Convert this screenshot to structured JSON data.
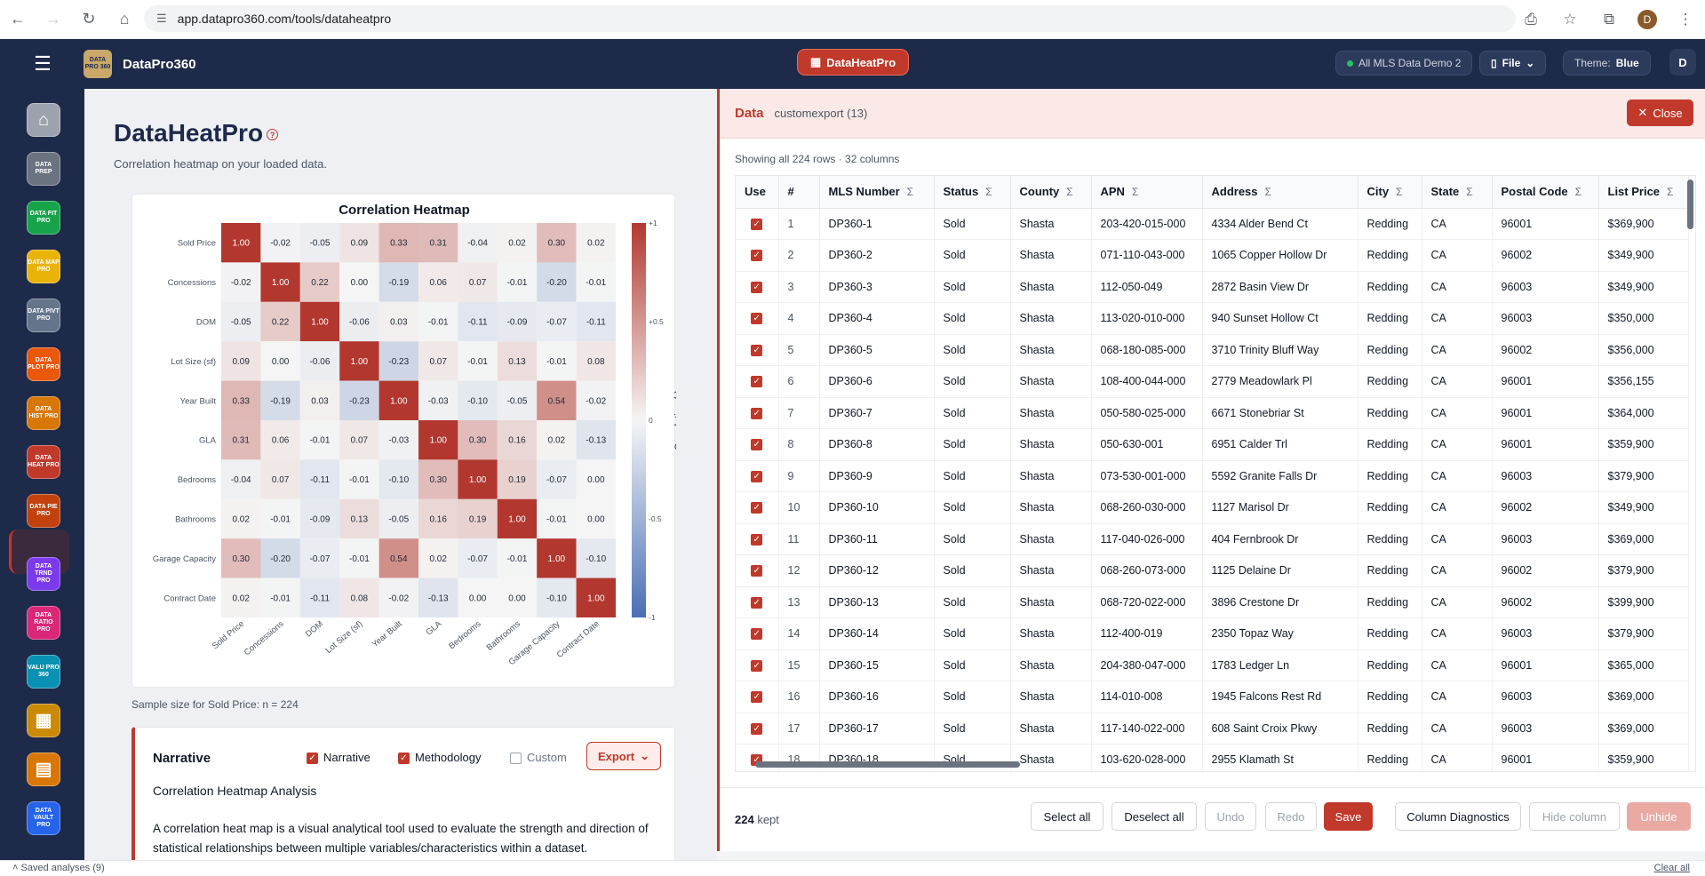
{
  "browser": {
    "url": "app.datapro360.com/tools/dataheatpro",
    "profile": "D"
  },
  "app": {
    "brand": "DataPro360",
    "logo_text": "DATA PRO 360",
    "center_tool": "DataHeatPro",
    "dataset": "All MLS Data Demo 2",
    "file_menu": "File",
    "theme_label": "Theme:",
    "theme_value": "Blue",
    "user": "D"
  },
  "sidebar": [
    {
      "label": "",
      "color": "#9ca3af",
      "icon": "home-icon"
    },
    {
      "label": "DATA PREP",
      "color": "#6b7280"
    },
    {
      "label": "DATA FIT PRO",
      "color": "#16a34a"
    },
    {
      "label": "DATA MAP PRO",
      "color": "#eab308"
    },
    {
      "label": "DATA PIVT PRO",
      "color": "#64748b"
    },
    {
      "label": "DATA PLOT PRO",
      "color": "#ea580c"
    },
    {
      "label": "DATA HIST PRO",
      "color": "#d97706"
    },
    {
      "label": "DATA HEAT PRO",
      "color": "#c0392b"
    },
    {
      "label": "DATA PIE PRO",
      "color": "#c2410c"
    },
    {
      "label": "DATA TRND PRO",
      "color": "#7c3aed"
    },
    {
      "label": "DATA RATIO PRO",
      "color": "#db2777"
    },
    {
      "label": "VALU PRO 360",
      "color": "#0891b2"
    },
    {
      "label": "",
      "color": "#ca8a04",
      "icon": "grid-icon"
    },
    {
      "label": "",
      "color": "#d97706",
      "icon": "report-icon"
    },
    {
      "label": "DATA VAULT PRO",
      "color": "#2563eb"
    }
  ],
  "page": {
    "title": "DataHeatPro",
    "subtitle": "Correlation heatmap on your loaded data.",
    "sample": "Sample size for Sold Price: n = 224"
  },
  "chart_data": {
    "type": "heatmap",
    "title": "Correlation Heatmap",
    "colorbar_label": "Correlation (r)",
    "colorbar_ticks": [
      "+1",
      "+0.5",
      "0",
      "-0.5",
      "-1"
    ],
    "range": [
      -1,
      1
    ],
    "colors": {
      "positive": "#b2382f",
      "negative": "#4a6fb5",
      "neutral": "#f5f5f5"
    },
    "labels": [
      "Sold Price",
      "Concessions",
      "DOM",
      "Lot Size (sf)",
      "Year Built",
      "GLA",
      "Bedrooms",
      "Bathrooms",
      "Garage Capacity",
      "Contract Date"
    ],
    "matrix": [
      [
        1.0,
        -0.02,
        -0.05,
        0.09,
        0.33,
        0.31,
        -0.04,
        0.02,
        0.3,
        0.02
      ],
      [
        -0.02,
        1.0,
        0.22,
        0.0,
        -0.19,
        0.06,
        0.07,
        -0.01,
        -0.2,
        -0.01
      ],
      [
        -0.05,
        0.22,
        1.0,
        -0.06,
        0.03,
        -0.01,
        -0.11,
        -0.09,
        -0.07,
        -0.11
      ],
      [
        0.09,
        0.0,
        -0.06,
        1.0,
        -0.23,
        0.07,
        -0.01,
        0.13,
        -0.01,
        0.08
      ],
      [
        0.33,
        -0.19,
        0.03,
        -0.23,
        1.0,
        -0.03,
        -0.1,
        -0.05,
        0.54,
        -0.02
      ],
      [
        0.31,
        0.06,
        -0.01,
        0.07,
        -0.03,
        1.0,
        0.3,
        0.16,
        0.02,
        -0.13
      ],
      [
        -0.04,
        0.07,
        -0.11,
        -0.01,
        -0.1,
        0.3,
        1.0,
        0.19,
        -0.07,
        0.0
      ],
      [
        0.02,
        -0.01,
        -0.09,
        0.13,
        -0.05,
        0.16,
        0.19,
        1.0,
        -0.01,
        0.0
      ],
      [
        0.3,
        -0.2,
        -0.07,
        -0.01,
        0.54,
        0.02,
        -0.07,
        -0.01,
        1.0,
        -0.1
      ],
      [
        0.02,
        -0.01,
        -0.11,
        0.08,
        -0.02,
        -0.13,
        0.0,
        0.0,
        -0.1,
        1.0
      ]
    ]
  },
  "narrative": {
    "heading": "Narrative",
    "opt_narrative": "Narrative",
    "opt_methodology": "Methodology",
    "opt_custom": "Custom",
    "export": "Export",
    "title": "Correlation Heatmap Analysis",
    "para": "A correlation heat map is a visual analytical tool used to evaluate the strength and direction of statistical relationships between multiple variables/characteristics within a dataset."
  },
  "data_panel": {
    "title": "Data",
    "file": "customexport (13)",
    "close": "Close",
    "info": "Showing all 224 rows · 32 columns",
    "columns": [
      "Use",
      "#",
      "MLS Number",
      "Status",
      "County",
      "APN",
      "Address",
      "City",
      "State",
      "Postal Code",
      "List Price"
    ],
    "sortable": [
      false,
      false,
      true,
      true,
      true,
      true,
      true,
      true,
      true,
      true,
      true
    ],
    "rows": [
      [
        "1",
        "DP360-1",
        "Sold",
        "Shasta",
        "203-420-015-000",
        "4334 Alder Bend Ct",
        "Redding",
        "CA",
        "96001",
        "$369,900"
      ],
      [
        "2",
        "DP360-2",
        "Sold",
        "Shasta",
        "071-110-043-000",
        "1065 Copper Hollow Dr",
        "Redding",
        "CA",
        "96002",
        "$349,900"
      ],
      [
        "3",
        "DP360-3",
        "Sold",
        "Shasta",
        "112-050-049",
        "2872 Basin View Dr",
        "Redding",
        "CA",
        "96003",
        "$349,900"
      ],
      [
        "4",
        "DP360-4",
        "Sold",
        "Shasta",
        "113-020-010-000",
        "940 Sunset Hollow Ct",
        "Redding",
        "CA",
        "96003",
        "$350,000"
      ],
      [
        "5",
        "DP360-5",
        "Sold",
        "Shasta",
        "068-180-085-000",
        "3710 Trinity Bluff Way",
        "Redding",
        "CA",
        "96002",
        "$356,000"
      ],
      [
        "6",
        "DP360-6",
        "Sold",
        "Shasta",
        "108-400-044-000",
        "2779 Meadowlark Pl",
        "Redding",
        "CA",
        "96001",
        "$356,155"
      ],
      [
        "7",
        "DP360-7",
        "Sold",
        "Shasta",
        "050-580-025-000",
        "6671 Stonebriar St",
        "Redding",
        "CA",
        "96001",
        "$364,000"
      ],
      [
        "8",
        "DP360-8",
        "Sold",
        "Shasta",
        "050-630-001",
        "6951 Calder Trl",
        "Redding",
        "CA",
        "96001",
        "$359,900"
      ],
      [
        "9",
        "DP360-9",
        "Sold",
        "Shasta",
        "073-530-001-000",
        "5592 Granite Falls Dr",
        "Redding",
        "CA",
        "96003",
        "$379,900"
      ],
      [
        "10",
        "DP360-10",
        "Sold",
        "Shasta",
        "068-260-030-000",
        "1127 Marisol Dr",
        "Redding",
        "CA",
        "96002",
        "$349,900"
      ],
      [
        "11",
        "DP360-11",
        "Sold",
        "Shasta",
        "117-040-026-000",
        "404 Fernbrook Dr",
        "Redding",
        "CA",
        "96003",
        "$369,000"
      ],
      [
        "12",
        "DP360-12",
        "Sold",
        "Shasta",
        "068-260-073-000",
        "1125 Delaine Dr",
        "Redding",
        "CA",
        "96002",
        "$379,900"
      ],
      [
        "13",
        "DP360-13",
        "Sold",
        "Shasta",
        "068-720-022-000",
        "3896 Crestone Dr",
        "Redding",
        "CA",
        "96002",
        "$399,900"
      ],
      [
        "14",
        "DP360-14",
        "Sold",
        "Shasta",
        "112-400-019",
        "2350 Topaz Way",
        "Redding",
        "CA",
        "96003",
        "$379,900"
      ],
      [
        "15",
        "DP360-15",
        "Sold",
        "Shasta",
        "204-380-047-000",
        "1783 Ledger Ln",
        "Redding",
        "CA",
        "96001",
        "$365,000"
      ],
      [
        "16",
        "DP360-16",
        "Sold",
        "Shasta",
        "114-010-008",
        "1945 Falcons Rest Rd",
        "Redding",
        "CA",
        "96003",
        "$369,000"
      ],
      [
        "17",
        "DP360-17",
        "Sold",
        "Shasta",
        "117-140-022-000",
        "608 Saint Croix Pkwy",
        "Redding",
        "CA",
        "96003",
        "$369,000"
      ],
      [
        "18",
        "DP360-18",
        "Sold",
        "Shasta",
        "103-620-028-000",
        "2955 Klamath St",
        "Redding",
        "CA",
        "96001",
        "$359,900"
      ]
    ],
    "kept_count": "224",
    "kept_label": "kept",
    "buttons": {
      "select_all": "Select all",
      "deselect_all": "Deselect all",
      "undo": "Undo",
      "redo": "Redo",
      "save": "Save",
      "diagnostics": "Column Diagnostics",
      "hide": "Hide column",
      "unhide": "Unhide"
    }
  },
  "footer": {
    "saved": "Saved analyses (9)",
    "clear": "Clear all"
  }
}
